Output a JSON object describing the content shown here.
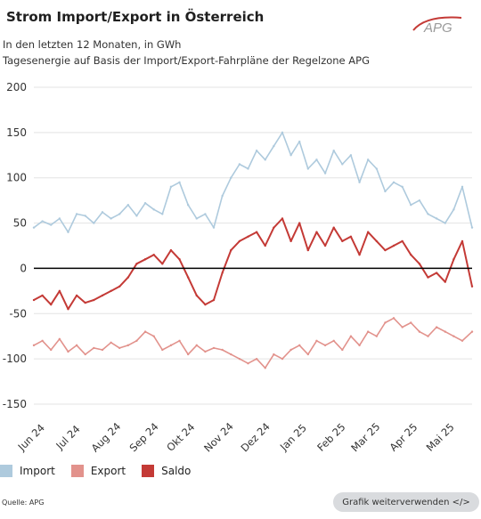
{
  "title": "Strom Import/Export in Österreich",
  "subtitle1": "In den letzten 12 Monaten, in GWh",
  "subtitle2": "Tagesenergie auf Basis der Import/Export-Fahrpläne der Regelzone APG",
  "logo_text": "APG",
  "source": "Quelle: APG",
  "embed_button": "Grafik weiterverwenden </>",
  "colors": {
    "import": "#aecadd",
    "export": "#e2928c",
    "saldo": "#c43a36",
    "zero_line": "#000000",
    "grid": "#e3e3e3"
  },
  "chart_data": {
    "type": "line",
    "title": "Strom Import/Export in Österreich",
    "ylabel": "GWh",
    "ylim": [
      -150,
      200
    ],
    "yticks": [
      200,
      150,
      100,
      50,
      0,
      -50,
      -100,
      -150
    ],
    "grid": true,
    "legend_placement": "bottom-left",
    "x_start": "2024-06-01",
    "x_end": "2025-05-25",
    "xticks": [
      {
        "date": "2024-06-01",
        "label": "Jun 24"
      },
      {
        "date": "2024-07-01",
        "label": "Jul 24"
      },
      {
        "date": "2024-08-01",
        "label": "Aug 24"
      },
      {
        "date": "2024-09-01",
        "label": "Sep 24"
      },
      {
        "date": "2024-10-01",
        "label": "Okt 24"
      },
      {
        "date": "2024-11-01",
        "label": "Nov 24"
      },
      {
        "date": "2024-12-01",
        "label": "Dez 24"
      },
      {
        "date": "2025-01-01",
        "label": "Jan 25"
      },
      {
        "date": "2025-02-01",
        "label": "Feb 25"
      },
      {
        "date": "2025-03-01",
        "label": "Mar 25"
      },
      {
        "date": "2025-04-01",
        "label": "Apr 25"
      },
      {
        "date": "2025-05-01",
        "label": "Mai 25"
      }
    ],
    "series": [
      {
        "name": "Import",
        "x": [
          "2024-06-01",
          "2024-06-08",
          "2024-06-15",
          "2024-06-22",
          "2024-06-29",
          "2024-07-06",
          "2024-07-13",
          "2024-07-20",
          "2024-07-27",
          "2024-08-03",
          "2024-08-10",
          "2024-08-17",
          "2024-08-24",
          "2024-08-31",
          "2024-09-07",
          "2024-09-14",
          "2024-09-21",
          "2024-09-28",
          "2024-10-05",
          "2024-10-12",
          "2024-10-19",
          "2024-10-26",
          "2024-11-02",
          "2024-11-09",
          "2024-11-16",
          "2024-11-23",
          "2024-11-30",
          "2024-12-07",
          "2024-12-14",
          "2024-12-21",
          "2024-12-28",
          "2025-01-04",
          "2025-01-11",
          "2025-01-18",
          "2025-01-25",
          "2025-02-01",
          "2025-02-08",
          "2025-02-15",
          "2025-02-22",
          "2025-03-01",
          "2025-03-08",
          "2025-03-15",
          "2025-03-22",
          "2025-03-29",
          "2025-04-05",
          "2025-04-12",
          "2025-04-19",
          "2025-04-26",
          "2025-05-03",
          "2025-05-10",
          "2025-05-17",
          "2025-05-25"
        ],
        "values": [
          45,
          52,
          48,
          55,
          40,
          60,
          58,
          50,
          62,
          55,
          60,
          70,
          58,
          72,
          65,
          60,
          90,
          95,
          70,
          55,
          60,
          45,
          80,
          100,
          115,
          110,
          130,
          120,
          135,
          150,
          125,
          140,
          110,
          120,
          105,
          130,
          115,
          125,
          95,
          120,
          110,
          85,
          95,
          90,
          70,
          75,
          60,
          55,
          50,
          65,
          90,
          45
        ]
      },
      {
        "name": "Export",
        "x": [
          "2024-06-01",
          "2024-06-08",
          "2024-06-15",
          "2024-06-22",
          "2024-06-29",
          "2024-07-06",
          "2024-07-13",
          "2024-07-20",
          "2024-07-27",
          "2024-08-03",
          "2024-08-10",
          "2024-08-17",
          "2024-08-24",
          "2024-08-31",
          "2024-09-07",
          "2024-09-14",
          "2024-09-21",
          "2024-09-28",
          "2024-10-05",
          "2024-10-12",
          "2024-10-19",
          "2024-10-26",
          "2024-11-02",
          "2024-11-09",
          "2024-11-16",
          "2024-11-23",
          "2024-11-30",
          "2024-12-07",
          "2024-12-14",
          "2024-12-21",
          "2024-12-28",
          "2025-01-04",
          "2025-01-11",
          "2025-01-18",
          "2025-01-25",
          "2025-02-01",
          "2025-02-08",
          "2025-02-15",
          "2025-02-22",
          "2025-03-01",
          "2025-03-08",
          "2025-03-15",
          "2025-03-22",
          "2025-03-29",
          "2025-04-05",
          "2025-04-12",
          "2025-04-19",
          "2025-04-26",
          "2025-05-03",
          "2025-05-10",
          "2025-05-17",
          "2025-05-25"
        ],
        "values": [
          -85,
          -80,
          -90,
          -78,
          -92,
          -85,
          -95,
          -88,
          -90,
          -82,
          -88,
          -85,
          -80,
          -70,
          -75,
          -90,
          -85,
          -80,
          -95,
          -85,
          -92,
          -88,
          -90,
          -95,
          -100,
          -105,
          -100,
          -110,
          -95,
          -100,
          -90,
          -85,
          -95,
          -80,
          -85,
          -80,
          -90,
          -75,
          -85,
          -70,
          -75,
          -60,
          -55,
          -65,
          -60,
          -70,
          -75,
          -65,
          -70,
          -75,
          -80,
          -70
        ]
      },
      {
        "name": "Saldo",
        "x": [
          "2024-06-01",
          "2024-06-08",
          "2024-06-15",
          "2024-06-22",
          "2024-06-29",
          "2024-07-06",
          "2024-07-13",
          "2024-07-20",
          "2024-07-27",
          "2024-08-03",
          "2024-08-10",
          "2024-08-17",
          "2024-08-24",
          "2024-08-31",
          "2024-09-07",
          "2024-09-14",
          "2024-09-21",
          "2024-09-28",
          "2024-10-05",
          "2024-10-12",
          "2024-10-19",
          "2024-10-26",
          "2024-11-02",
          "2024-11-09",
          "2024-11-16",
          "2024-11-23",
          "2024-11-30",
          "2024-12-07",
          "2024-12-14",
          "2024-12-21",
          "2024-12-28",
          "2025-01-04",
          "2025-01-11",
          "2025-01-18",
          "2025-01-25",
          "2025-02-01",
          "2025-02-08",
          "2025-02-15",
          "2025-02-22",
          "2025-03-01",
          "2025-03-08",
          "2025-03-15",
          "2025-03-22",
          "2025-03-29",
          "2025-04-05",
          "2025-04-12",
          "2025-04-19",
          "2025-04-26",
          "2025-05-03",
          "2025-05-10",
          "2025-05-17",
          "2025-05-25"
        ],
        "values": [
          -35,
          -30,
          -40,
          -25,
          -45,
          -30,
          -38,
          -35,
          -30,
          -25,
          -20,
          -10,
          5,
          10,
          15,
          5,
          20,
          10,
          -10,
          -30,
          -40,
          -35,
          -5,
          20,
          30,
          35,
          40,
          25,
          45,
          55,
          30,
          50,
          20,
          40,
          25,
          45,
          30,
          35,
          15,
          40,
          30,
          20,
          25,
          30,
          15,
          5,
          -10,
          -5,
          -15,
          10,
          30,
          -20
        ]
      }
    ]
  },
  "legend": [
    {
      "label": "Import",
      "color": "#aecadd"
    },
    {
      "label": "Export",
      "color": "#e2928c"
    },
    {
      "label": "Saldo",
      "color": "#c43a36"
    }
  ]
}
